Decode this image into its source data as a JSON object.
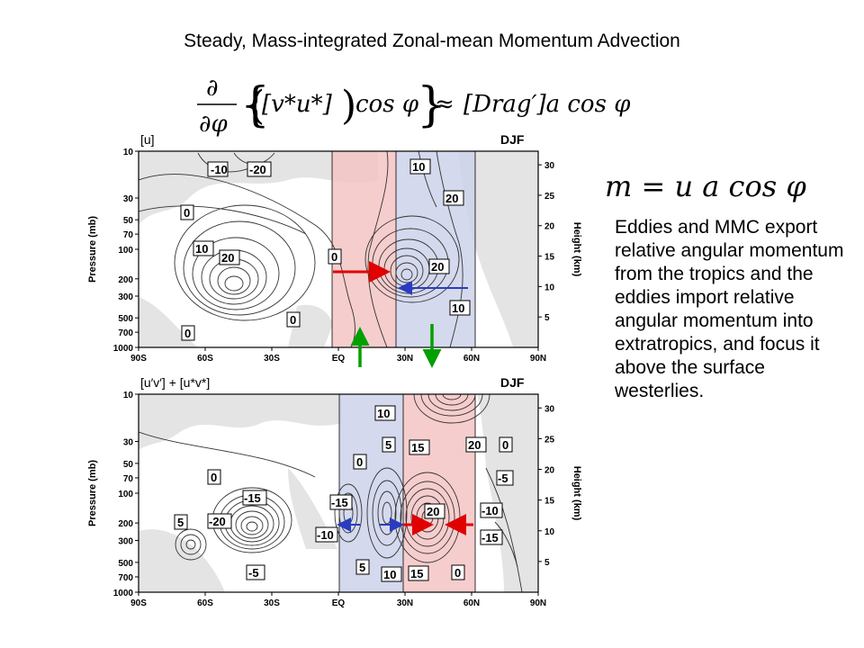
{
  "title": "Steady, Mass-integrated Zonal-mean Momentum Advection",
  "equation_main": {
    "partial": "∂",
    "dphi": "∂φ",
    "lhs_inner": "[v*u*]",
    "cos": "cos φ",
    "approx": "≈",
    "rhs": "[Drag′]a cos φ"
  },
  "equation_m": "m = u a cos φ",
  "description": "Eddies and MMC export relative angular momentum from the tropics and the eddies import relative angular momentum into extratropics, and focus it above the surface westerlies.",
  "panels": {
    "top": {
      "label": "[u]",
      "season": "DJF",
      "contour_labels": [
        "-10",
        "-20",
        "0",
        "10",
        "20",
        "0",
        "0",
        "0",
        "10",
        "20",
        "10"
      ]
    },
    "bottom": {
      "label": "[u′v′] + [u*v*]",
      "season": "DJF",
      "contour_labels": [
        "10",
        "5",
        "0",
        "-15",
        "-10",
        "5",
        "10",
        "15",
        "20",
        "15",
        "20",
        "0",
        "0",
        "-5",
        "-10",
        "-15",
        "-20",
        "-15",
        "5",
        "-5",
        "0"
      ]
    },
    "x_ticks": [
      "90S",
      "60S",
      "30S",
      "EQ",
      "30N",
      "60N",
      "90N"
    ],
    "y_ticks_pressure": [
      "10",
      "30",
      "50",
      "70",
      "100",
      "200",
      "300",
      "500",
      "700",
      "1000"
    ],
    "y_ticks_height": [
      "30",
      "25",
      "20",
      "15",
      "10",
      "5"
    ],
    "y_label_left": "Pressure (mb)",
    "y_label_right": "Height (km)"
  },
  "colors": {
    "shade_gray": "#e4e4e4",
    "band_red": "#f4c4c4",
    "band_blue": "#cdd2ea",
    "arrow_red": "#e00000",
    "arrow_blue": "#2a3cc0",
    "arrow_green": "#00a000"
  }
}
